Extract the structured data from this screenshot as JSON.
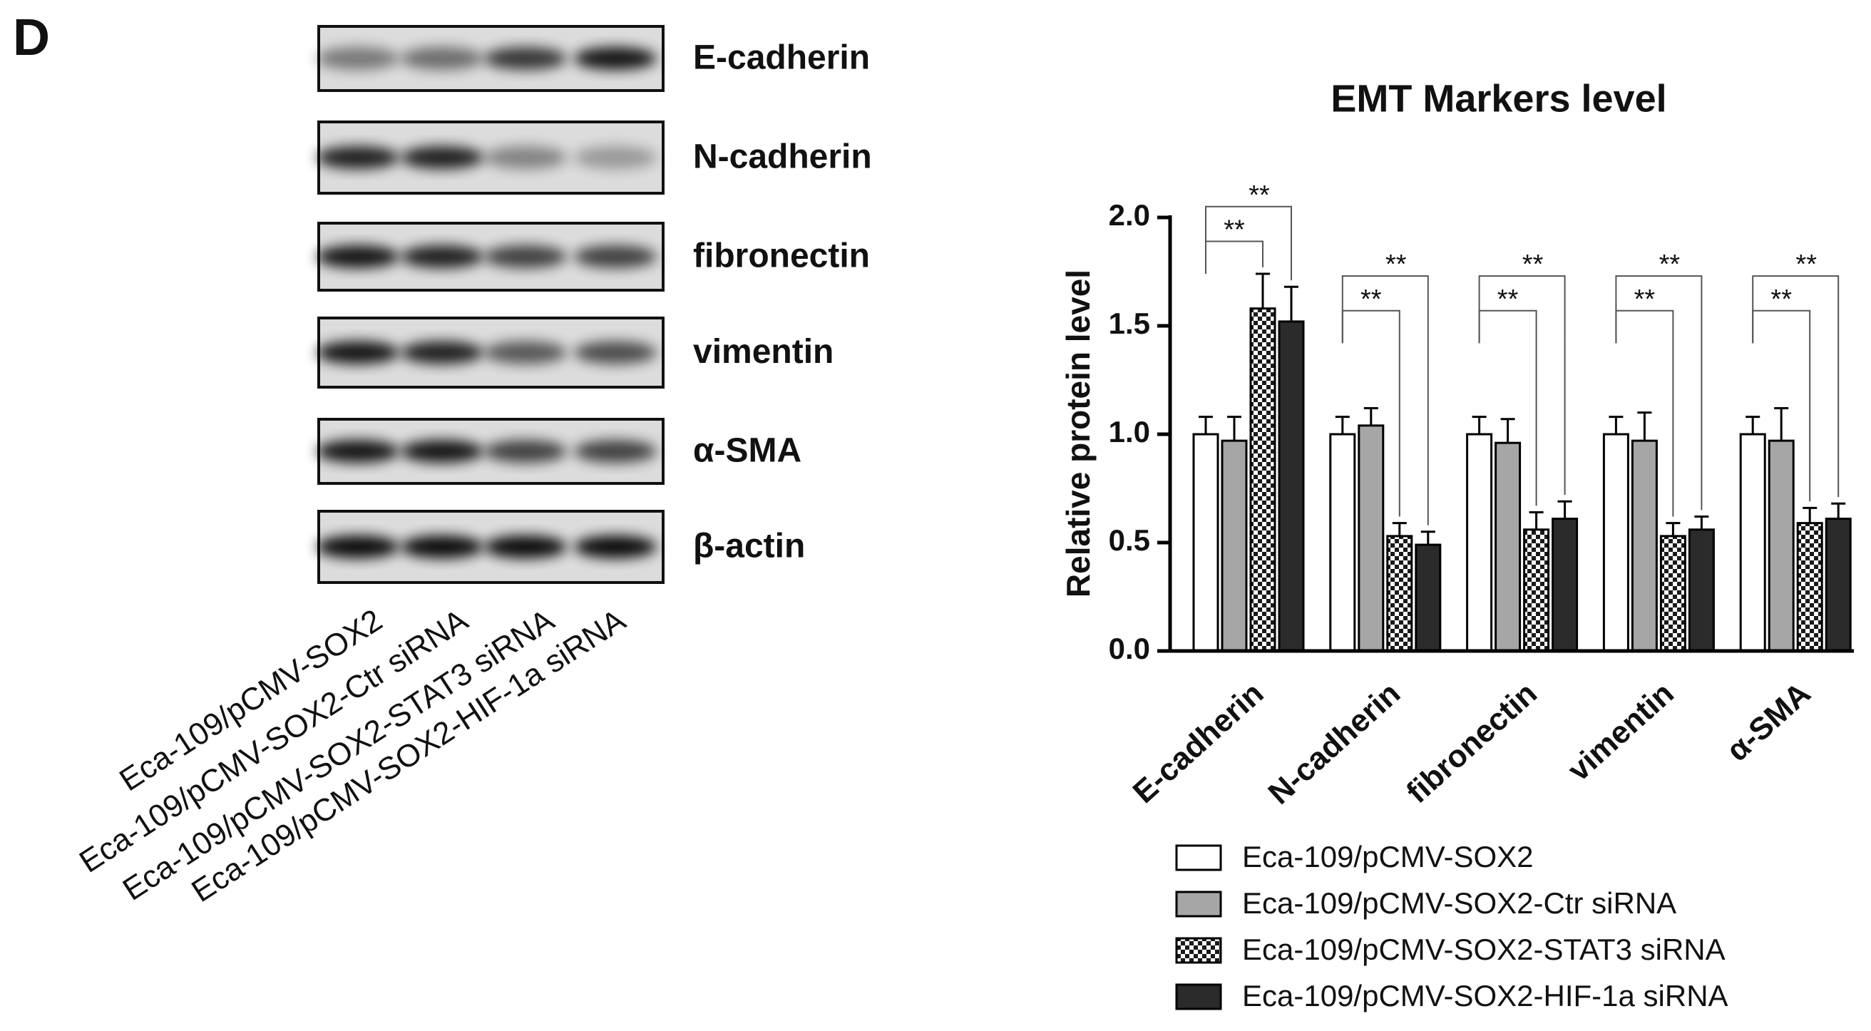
{
  "panel_label": "D",
  "blot": {
    "rows": [
      "E-cadherin",
      "N-cadherin",
      "fibronectin",
      "vimentin",
      "α-SMA",
      "β-actin"
    ],
    "lanes": [
      "Eca-109/pCMV-SOX2",
      "Eca-109/pCMV-SOX2-Ctr siRNA",
      "Eca-109/pCMV-SOX2-STAT3 siRNA",
      "Eca-109/pCMV-SOX2-HIF-1a siRNA"
    ]
  },
  "chart_data": {
    "type": "bar",
    "title": "EMT Markers level",
    "y_label": "Relative protein level",
    "categories": [
      "E-cadherin",
      "N-cadherin",
      "fibronectin",
      "vimentin",
      "α-SMA"
    ],
    "series": [
      {
        "name": "Eca-109/pCMV-SOX2",
        "color": "#ffffff",
        "values": [
          1.0,
          1.0,
          1.0,
          1.0,
          1.0
        ],
        "errors": [
          0.08,
          0.08,
          0.08,
          0.08,
          0.08
        ]
      },
      {
        "name": "Eca-109/pCMV-SOX2-Ctr siRNA",
        "color": "#a6a6a6",
        "values": [
          0.97,
          1.04,
          0.96,
          0.97,
          0.97
        ],
        "errors": [
          0.11,
          0.08,
          0.11,
          0.13,
          0.15
        ]
      },
      {
        "name": "Eca-109/pCMV-SOX2-STAT3 siRNA",
        "color": "#1a1a1a",
        "pattern": "checker",
        "values": [
          1.58,
          0.53,
          0.56,
          0.53,
          0.59
        ],
        "errors": [
          0.16,
          0.06,
          0.08,
          0.06,
          0.07
        ]
      },
      {
        "name": "Eca-109/pCMV-SOX2-HIF-1a siRNA",
        "color": "#2b2b2b",
        "values": [
          1.52,
          0.49,
          0.61,
          0.56,
          0.61
        ],
        "errors": [
          0.16,
          0.06,
          0.08,
          0.06,
          0.07
        ]
      }
    ],
    "significance": [
      [
        "**",
        "**"
      ],
      [
        "**",
        "**"
      ],
      [
        "**",
        "**"
      ],
      [
        "**",
        "**"
      ],
      [
        "**",
        "**"
      ]
    ],
    "ylim": [
      0,
      2
    ],
    "yticks": [
      {
        "value": 0,
        "label": "0.0"
      },
      0.5,
      {
        "value": 1,
        "label": "1.0"
      },
      1.5,
      {
        "value": 2,
        "label": "2.0"
      }
    ],
    "grid": false
  }
}
